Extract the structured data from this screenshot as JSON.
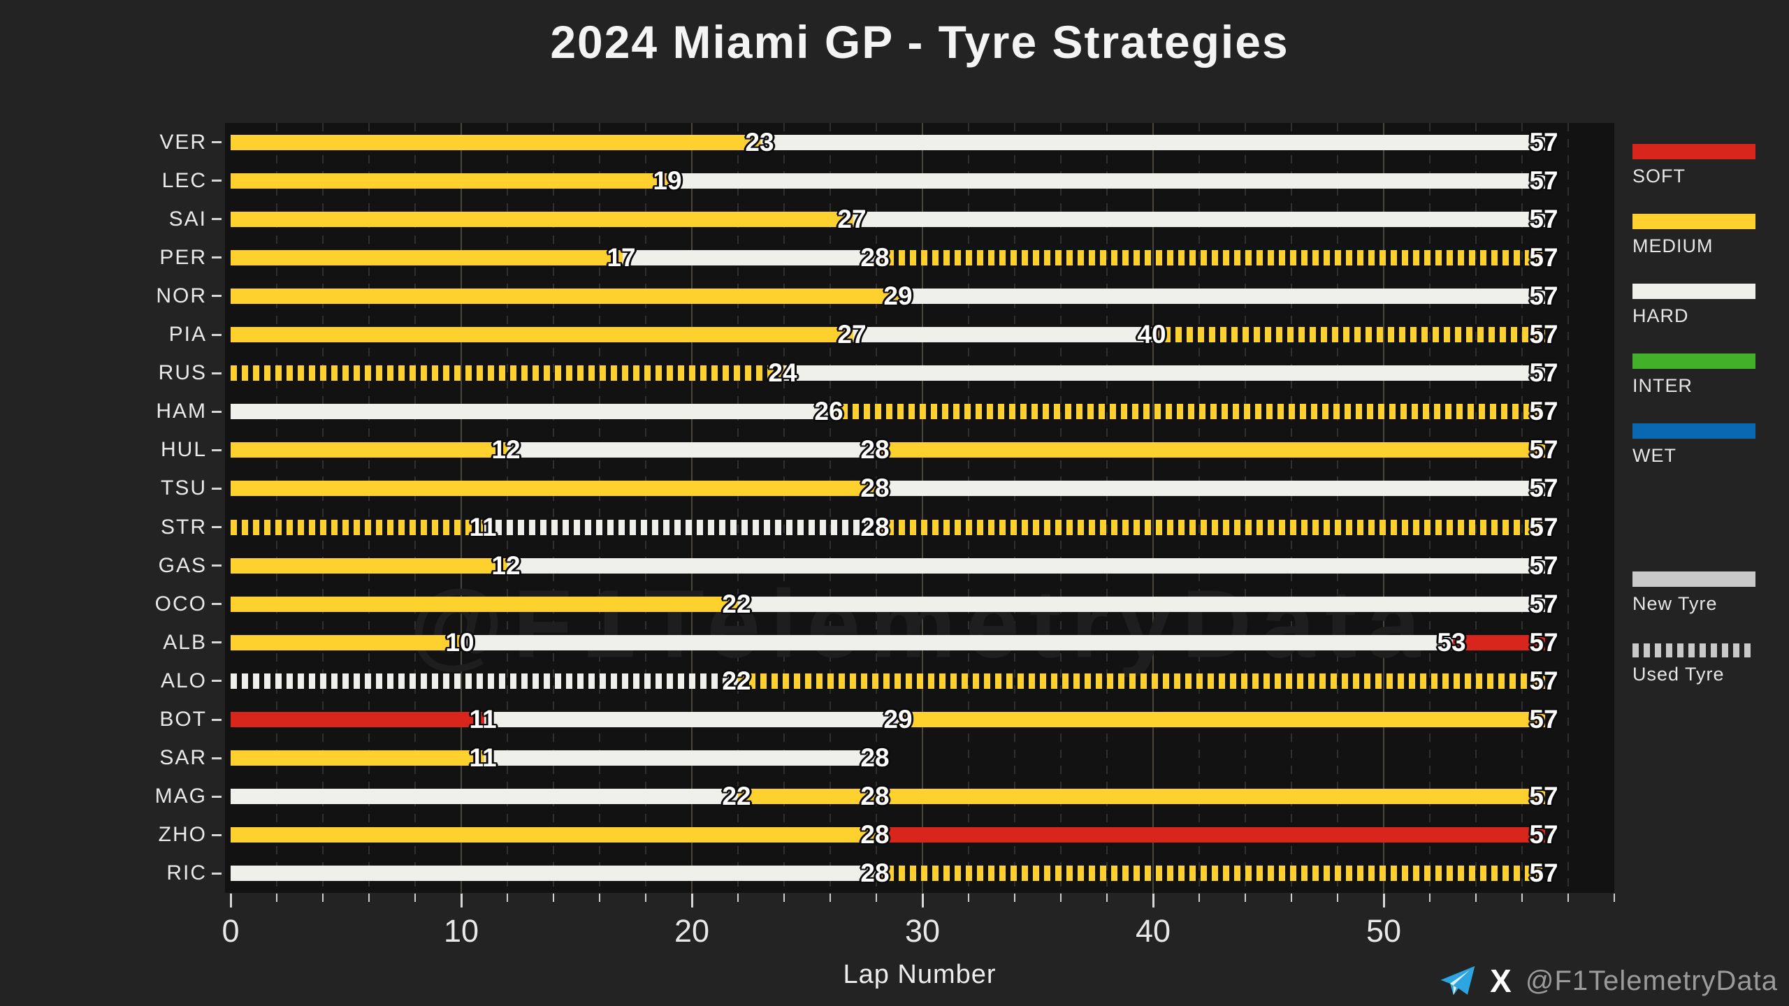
{
  "title": "2024 Miami GP - Tyre Strategies",
  "watermark": "@F1TelemetryData",
  "footer": {
    "handle": "@F1TelemetryData",
    "x_logo": "X",
    "icons": [
      "telegram-icon",
      "x-icon"
    ]
  },
  "colors": {
    "figure_bg": "#232323",
    "plot_bg": "#121212",
    "grid_minor": "#303030",
    "grid_major": "#4a463e",
    "text": "#e9e9e9",
    "label_outline": "#0a0a0a",
    "watermark": "#1e1e1e",
    "new_tyre_legend": "#c9c9c9",
    "telegram_blue": "#2ca5e0"
  },
  "chart_data": {
    "type": "bar",
    "variant": "horizontal-stint-gantt",
    "title": "2024 Miami GP - Tyre Strategies",
    "xlabel": "Lap Number",
    "ylabel": "",
    "xlim": [
      0,
      60
    ],
    "total_laps": 57,
    "xticks": [
      0,
      10,
      20,
      30,
      40,
      50
    ],
    "minor_tick_step": 2,
    "grid": "vertical, minor dashed every 2 laps, major solid every 10 laps",
    "legend_position": "right",
    "compound_colors": {
      "SOFT": "#d9261d",
      "MEDIUM": "#ffd12e",
      "HARD": "#efefec",
      "INTER": "#43b02a",
      "WET": "#0a67b2"
    },
    "legend": {
      "compounds": [
        "SOFT",
        "MEDIUM",
        "HARD",
        "INTER",
        "WET"
      ],
      "tyre_state": [
        {
          "label": "New Tyre",
          "style": "solid"
        },
        {
          "label": "Used Tyre",
          "style": "dashed"
        }
      ]
    },
    "drivers": [
      {
        "code": "VER",
        "stints": [
          {
            "compound": "MEDIUM",
            "from": 0,
            "to": 23,
            "used": false
          },
          {
            "compound": "HARD",
            "from": 23,
            "to": 57,
            "used": false
          }
        ]
      },
      {
        "code": "LEC",
        "stints": [
          {
            "compound": "MEDIUM",
            "from": 0,
            "to": 19,
            "used": false
          },
          {
            "compound": "HARD",
            "from": 19,
            "to": 57,
            "used": false
          }
        ]
      },
      {
        "code": "SAI",
        "stints": [
          {
            "compound": "MEDIUM",
            "from": 0,
            "to": 27,
            "used": false
          },
          {
            "compound": "HARD",
            "from": 27,
            "to": 57,
            "used": false
          }
        ]
      },
      {
        "code": "PER",
        "stints": [
          {
            "compound": "MEDIUM",
            "from": 0,
            "to": 17,
            "used": false
          },
          {
            "compound": "HARD",
            "from": 17,
            "to": 28,
            "used": false
          },
          {
            "compound": "MEDIUM",
            "from": 28,
            "to": 57,
            "used": true
          }
        ]
      },
      {
        "code": "NOR",
        "stints": [
          {
            "compound": "MEDIUM",
            "from": 0,
            "to": 29,
            "used": false
          },
          {
            "compound": "HARD",
            "from": 29,
            "to": 57,
            "used": false
          }
        ]
      },
      {
        "code": "PIA",
        "stints": [
          {
            "compound": "MEDIUM",
            "from": 0,
            "to": 27,
            "used": false
          },
          {
            "compound": "HARD",
            "from": 27,
            "to": 40,
            "used": false
          },
          {
            "compound": "MEDIUM",
            "from": 40,
            "to": 57,
            "used": true
          }
        ]
      },
      {
        "code": "RUS",
        "stints": [
          {
            "compound": "MEDIUM",
            "from": 0,
            "to": 24,
            "used": true
          },
          {
            "compound": "HARD",
            "from": 24,
            "to": 57,
            "used": false
          }
        ]
      },
      {
        "code": "HAM",
        "stints": [
          {
            "compound": "HARD",
            "from": 0,
            "to": 26,
            "used": false
          },
          {
            "compound": "MEDIUM",
            "from": 26,
            "to": 57,
            "used": true
          }
        ]
      },
      {
        "code": "HUL",
        "stints": [
          {
            "compound": "MEDIUM",
            "from": 0,
            "to": 12,
            "used": false
          },
          {
            "compound": "HARD",
            "from": 12,
            "to": 28,
            "used": false
          },
          {
            "compound": "MEDIUM",
            "from": 28,
            "to": 57,
            "used": false
          }
        ]
      },
      {
        "code": "TSU",
        "stints": [
          {
            "compound": "MEDIUM",
            "from": 0,
            "to": 28,
            "used": false
          },
          {
            "compound": "HARD",
            "from": 28,
            "to": 57,
            "used": false
          }
        ]
      },
      {
        "code": "STR",
        "stints": [
          {
            "compound": "MEDIUM",
            "from": 0,
            "to": 11,
            "used": true
          },
          {
            "compound": "HARD",
            "from": 11,
            "to": 28,
            "used": true
          },
          {
            "compound": "MEDIUM",
            "from": 28,
            "to": 57,
            "used": true
          }
        ]
      },
      {
        "code": "GAS",
        "stints": [
          {
            "compound": "MEDIUM",
            "from": 0,
            "to": 12,
            "used": false
          },
          {
            "compound": "HARD",
            "from": 12,
            "to": 57,
            "used": false
          }
        ]
      },
      {
        "code": "OCO",
        "stints": [
          {
            "compound": "MEDIUM",
            "from": 0,
            "to": 22,
            "used": false
          },
          {
            "compound": "HARD",
            "from": 22,
            "to": 57,
            "used": false
          }
        ]
      },
      {
        "code": "ALB",
        "stints": [
          {
            "compound": "MEDIUM",
            "from": 0,
            "to": 10,
            "used": false
          },
          {
            "compound": "HARD",
            "from": 10,
            "to": 53,
            "used": false
          },
          {
            "compound": "SOFT",
            "from": 53,
            "to": 57,
            "used": false
          }
        ]
      },
      {
        "code": "ALO",
        "stints": [
          {
            "compound": "HARD",
            "from": 0,
            "to": 22,
            "used": true
          },
          {
            "compound": "MEDIUM",
            "from": 22,
            "to": 57,
            "used": true
          }
        ]
      },
      {
        "code": "BOT",
        "stints": [
          {
            "compound": "SOFT",
            "from": 0,
            "to": 11,
            "used": false
          },
          {
            "compound": "HARD",
            "from": 11,
            "to": 29,
            "used": false
          },
          {
            "compound": "MEDIUM",
            "from": 29,
            "to": 57,
            "used": false
          }
        ]
      },
      {
        "code": "SAR",
        "stints": [
          {
            "compound": "MEDIUM",
            "from": 0,
            "to": 11,
            "used": false
          },
          {
            "compound": "HARD",
            "from": 11,
            "to": 28,
            "used": false
          }
        ]
      },
      {
        "code": "MAG",
        "stints": [
          {
            "compound": "HARD",
            "from": 0,
            "to": 22,
            "used": false
          },
          {
            "compound": "MEDIUM",
            "from": 22,
            "to": 28,
            "used": false
          },
          {
            "compound": "MEDIUM",
            "from": 28,
            "to": 57,
            "used": false
          }
        ]
      },
      {
        "code": "ZHO",
        "stints": [
          {
            "compound": "MEDIUM",
            "from": 0,
            "to": 28,
            "used": false
          },
          {
            "compound": "SOFT",
            "from": 28,
            "to": 57,
            "used": false
          }
        ]
      },
      {
        "code": "RIC",
        "stints": [
          {
            "compound": "HARD",
            "from": 0,
            "to": 28,
            "used": false
          },
          {
            "compound": "MEDIUM",
            "from": 28,
            "to": 57,
            "used": true
          }
        ]
      }
    ]
  }
}
